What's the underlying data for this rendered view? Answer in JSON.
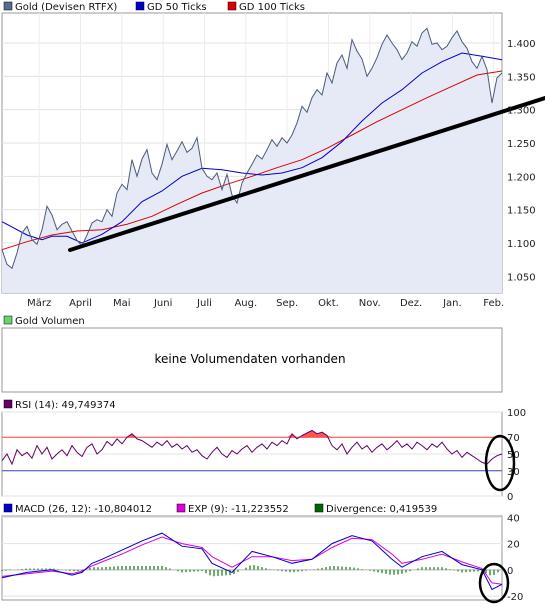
{
  "chart_data": [
    {
      "type": "line",
      "legend": [
        {
          "label": "Gold (Devisen RTFX)",
          "color": "#596e8c"
        },
        {
          "label": "GD 50 Ticks",
          "color": "#0000cc"
        },
        {
          "label": "GD 100 Ticks",
          "color": "#dd0000"
        }
      ],
      "months": [
        "März",
        "April",
        "Mai",
        "Juni",
        "Juli",
        "Aug.",
        "Sep.",
        "Okt.",
        "Nov.",
        "Dez.",
        "Jan.",
        "Feb."
      ],
      "yticks": [
        "1.050",
        "1.100",
        "1.150",
        "1.200",
        "1.250",
        "1.300",
        "1.350",
        "1.400"
      ],
      "ylim": [
        1.025,
        1.445
      ],
      "xlim": [
        0,
        100
      ],
      "fill_color": "#e6eaf6",
      "series": [
        {
          "name": "Gold (Devisen RTFX)",
          "color": "#596e8c",
          "x": [
            0,
            1,
            2,
            3,
            4,
            5,
            6,
            7,
            8,
            9,
            10,
            11,
            12,
            13,
            14,
            15,
            16,
            17,
            18,
            19,
            20,
            21,
            22,
            23,
            24,
            25,
            26,
            27,
            28,
            29,
            30,
            31,
            32,
            33,
            34,
            35,
            36,
            37,
            38,
            39,
            40,
            41,
            42,
            43,
            44,
            45,
            46,
            47,
            48,
            49,
            50,
            51,
            52,
            53,
            54,
            55,
            56,
            57,
            58,
            59,
            60,
            61,
            62,
            63,
            64,
            65,
            66,
            67,
            68,
            69,
            70,
            71,
            72,
            73,
            74,
            75,
            76,
            77,
            78,
            79,
            80,
            81,
            82,
            83,
            84,
            85,
            86,
            87,
            88,
            89,
            90,
            91,
            92,
            93,
            94,
            95,
            96,
            97,
            98,
            99,
            100
          ],
          "y": [
            1.09,
            1.068,
            1.062,
            1.085,
            1.115,
            1.125,
            1.105,
            1.098,
            1.12,
            1.155,
            1.142,
            1.12,
            1.128,
            1.132,
            1.118,
            1.104,
            1.096,
            1.112,
            1.13,
            1.135,
            1.132,
            1.15,
            1.14,
            1.175,
            1.188,
            1.18,
            1.225,
            1.2,
            1.226,
            1.24,
            1.205,
            1.195,
            1.218,
            1.248,
            1.225,
            1.238,
            1.252,
            1.236,
            1.242,
            1.258,
            1.212,
            1.2,
            1.195,
            1.205,
            1.18,
            1.203,
            1.172,
            1.16,
            1.19,
            1.205,
            1.218,
            1.232,
            1.226,
            1.24,
            1.255,
            1.245,
            1.258,
            1.25,
            1.262,
            1.28,
            1.305,
            1.296,
            1.318,
            1.33,
            1.322,
            1.355,
            1.34,
            1.37,
            1.382,
            1.362,
            1.405,
            1.388,
            1.376,
            1.35,
            1.362,
            1.378,
            1.398,
            1.412,
            1.4,
            1.39,
            1.375,
            1.385,
            1.402,
            1.395,
            1.415,
            1.422,
            1.398,
            1.4,
            1.39,
            1.395,
            1.408,
            1.418,
            1.402,
            1.392,
            1.372,
            1.362,
            1.38,
            1.36,
            1.31,
            1.348,
            1.355
          ]
        },
        {
          "name": "GD 50 Ticks",
          "color": "#0000cc",
          "x": [
            0,
            5,
            8,
            10,
            13,
            16,
            20,
            24,
            28,
            32,
            36,
            40,
            44,
            48,
            52,
            56,
            60,
            64,
            68,
            72,
            76,
            80,
            84,
            88,
            92,
            96,
            100
          ],
          "y": [
            1.132,
            1.112,
            1.105,
            1.11,
            1.11,
            1.1,
            1.113,
            1.132,
            1.162,
            1.178,
            1.2,
            1.212,
            1.21,
            1.205,
            1.202,
            1.205,
            1.213,
            1.228,
            1.252,
            1.283,
            1.31,
            1.33,
            1.355,
            1.372,
            1.385,
            1.38,
            1.375
          ]
        },
        {
          "name": "GD 100 Ticks",
          "color": "#dd0000",
          "x": [
            0,
            5,
            10,
            15,
            20,
            25,
            30,
            35,
            40,
            45,
            50,
            55,
            60,
            65,
            70,
            75,
            80,
            85,
            90,
            95,
            100
          ],
          "y": [
            1.09,
            1.102,
            1.112,
            1.118,
            1.12,
            1.128,
            1.14,
            1.158,
            1.175,
            1.188,
            1.2,
            1.213,
            1.225,
            1.242,
            1.262,
            1.282,
            1.3,
            1.318,
            1.335,
            1.352,
            1.358
          ]
        }
      ]
    },
    {
      "type": "line",
      "legend": [
        {
          "label": "Gold Volumen",
          "color": "#6bd36b"
        }
      ],
      "message": "keine Volumendaten vorhanden"
    },
    {
      "type": "line",
      "legend": [
        {
          "label": "RSI (14): 49,749374",
          "color": "#660066"
        }
      ],
      "yticks": [
        "0",
        "30",
        "50",
        "70",
        "100"
      ],
      "ylim": [
        0,
        100
      ],
      "xlim": [
        0,
        100
      ],
      "overbought": 70,
      "oversold": 30,
      "series": [
        {
          "name": "RSI (14): 49,749374",
          "color": "#660066",
          "x": [
            0,
            1,
            2,
            3,
            4,
            5,
            6,
            7,
            8,
            9,
            10,
            11,
            12,
            13,
            14,
            15,
            16,
            17,
            18,
            19,
            20,
            21,
            22,
            23,
            24,
            25,
            26,
            27,
            28,
            29,
            30,
            31,
            32,
            33,
            34,
            35,
            36,
            37,
            38,
            39,
            40,
            41,
            42,
            43,
            44,
            45,
            46,
            47,
            48,
            49,
            50,
            51,
            52,
            53,
            54,
            55,
            56,
            57,
            58,
            59,
            60,
            61,
            62,
            63,
            64,
            65,
            66,
            67,
            68,
            69,
            70,
            71,
            72,
            73,
            74,
            75,
            76,
            77,
            78,
            79,
            80,
            81,
            82,
            83,
            84,
            85,
            86,
            87,
            88,
            89,
            90,
            91,
            92,
            93,
            94,
            95,
            96,
            97,
            98,
            99,
            100
          ],
          "y": [
            42,
            50,
            38,
            55,
            48,
            52,
            45,
            60,
            50,
            58,
            44,
            50,
            55,
            48,
            60,
            52,
            47,
            58,
            62,
            50,
            55,
            65,
            60,
            68,
            62,
            70,
            74,
            68,
            66,
            62,
            58,
            64,
            60,
            66,
            58,
            62,
            56,
            60,
            52,
            55,
            48,
            44,
            52,
            58,
            50,
            46,
            54,
            50,
            56,
            60,
            52,
            58,
            62,
            56,
            64,
            60,
            66,
            62,
            74,
            68,
            72,
            75,
            78,
            74,
            76,
            72,
            60,
            55,
            62,
            50,
            58,
            64,
            56,
            60,
            52,
            58,
            62,
            55,
            60,
            66,
            58,
            62,
            56,
            64,
            60,
            55,
            62,
            58,
            64,
            56,
            50,
            54,
            46,
            52,
            48,
            44,
            40,
            38,
            44,
            48,
            50
          ]
        }
      ]
    },
    {
      "type": "line",
      "legend": [
        {
          "label": "MACD (26, 12): -10,804012",
          "color": "#0000cc"
        },
        {
          "label": "EXP (9): -11,223552",
          "color": "#dd00dd"
        },
        {
          "label": "Divergence: 0,419539",
          "color": "#006600"
        }
      ],
      "yticks": [
        "-20",
        "0",
        "20",
        "40"
      ],
      "ylim": [
        -23,
        41
      ],
      "xlim": [
        0,
        100
      ],
      "series": [
        {
          "name": "MACD (26, 12): -10,804012",
          "color": "#0000cc",
          "x": [
            0,
            5,
            10,
            14,
            16,
            18,
            20,
            24,
            28,
            32,
            36,
            40,
            42,
            46,
            50,
            54,
            58,
            62,
            66,
            70,
            74,
            78,
            80,
            84,
            88,
            92,
            96,
            98,
            100
          ],
          "y": [
            -6,
            -2,
            0,
            -4,
            -2,
            5,
            8,
            15,
            22,
            28,
            18,
            16,
            5,
            -2,
            14,
            10,
            5,
            8,
            20,
            26,
            22,
            8,
            2,
            10,
            14,
            4,
            0,
            -15,
            -11
          ]
        },
        {
          "name": "EXP (9): -11,223552",
          "color": "#dd00dd",
          "x": [
            0,
            5,
            10,
            14,
            16,
            18,
            20,
            24,
            28,
            32,
            36,
            40,
            42,
            46,
            50,
            54,
            58,
            62,
            66,
            70,
            74,
            78,
            80,
            84,
            88,
            92,
            96,
            98,
            100
          ],
          "y": [
            -5,
            -3,
            -1,
            -3,
            -1,
            3,
            6,
            12,
            19,
            25,
            20,
            17,
            10,
            2,
            10,
            10,
            7,
            8,
            17,
            24,
            23,
            12,
            5,
            8,
            12,
            6,
            1,
            -10,
            -11
          ]
        },
        {
          "name": "Divergence: 0,419539",
          "color": "#006600",
          "x": [
            0,
            5,
            10,
            14,
            16,
            18,
            20,
            24,
            28,
            32,
            36,
            40,
            42,
            46,
            50,
            54,
            58,
            62,
            66,
            70,
            74,
            78,
            80,
            84,
            88,
            92,
            96,
            98,
            100
          ],
          "y": [
            -1,
            1,
            1,
            -1,
            -1,
            2,
            2,
            3,
            3,
            3,
            -2,
            -1,
            -5,
            -4,
            4,
            0,
            -2,
            0,
            3,
            2,
            -1,
            -4,
            -3,
            2,
            2,
            -2,
            -1,
            -5,
            0
          ]
        }
      ]
    }
  ]
}
